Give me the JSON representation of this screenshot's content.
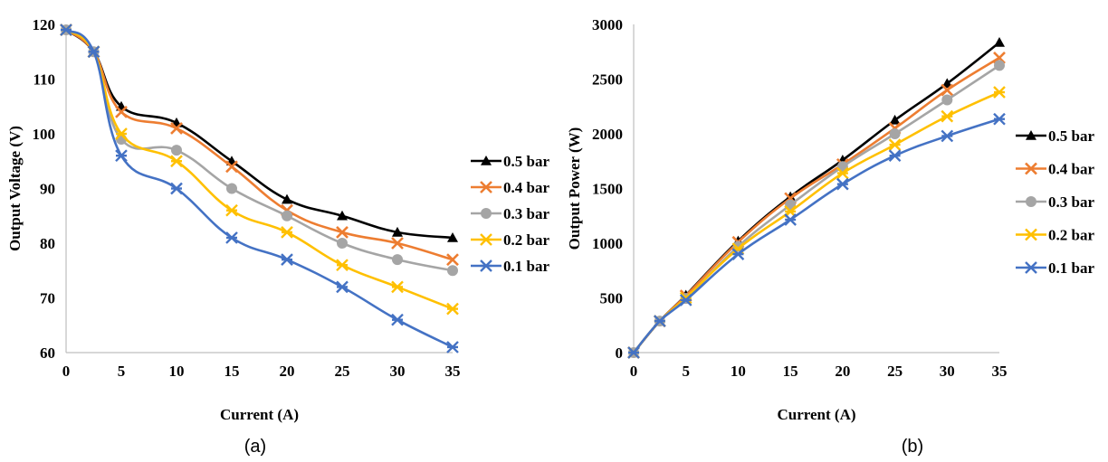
{
  "chart_data": [
    {
      "type": "line",
      "panel_label": "(a)",
      "xlabel": "Current (A)",
      "ylabel": "Output Voltage (V)",
      "xlim": [
        0,
        35
      ],
      "ylim": [
        60,
        120
      ],
      "xticks": [
        0,
        5,
        10,
        15,
        20,
        25,
        30,
        35
      ],
      "yticks": [
        60,
        70,
        80,
        90,
        100,
        110,
        120
      ],
      "grid": false,
      "legend_position": "right",
      "x": [
        0,
        2.5,
        5,
        10,
        15,
        20,
        25,
        30,
        35
      ],
      "series": [
        {
          "name": "0.5 bar",
          "color": "#000000",
          "marker": "triangle",
          "values": [
            119,
            115,
            105,
            102,
            95,
            88,
            85,
            82,
            81
          ]
        },
        {
          "name": "0.4 bar",
          "color": "#ed7d31",
          "marker": "x",
          "values": [
            119,
            115,
            104,
            101,
            94,
            86,
            82,
            80,
            77
          ]
        },
        {
          "name": "0.3 bar",
          "color": "#a5a5a5",
          "marker": "circle",
          "values": [
            119,
            115,
            99,
            97,
            90,
            85,
            80,
            77,
            75
          ]
        },
        {
          "name": "0.2 bar",
          "color": "#ffc000",
          "marker": "star",
          "values": [
            119,
            115,
            100,
            95,
            86,
            82,
            76,
            72,
            68
          ]
        },
        {
          "name": "0.1 bar",
          "color": "#4472c4",
          "marker": "star",
          "values": [
            119,
            115,
            96,
            90,
            81,
            77,
            72,
            66,
            61
          ]
        }
      ]
    },
    {
      "type": "line",
      "panel_label": "(b)",
      "xlabel": "Current (A)",
      "ylabel": "Output Power (W)",
      "xlim": [
        0,
        35
      ],
      "ylim": [
        0,
        3000
      ],
      "xticks": [
        0,
        5,
        10,
        15,
        20,
        25,
        30,
        35
      ],
      "yticks": [
        0,
        500,
        1000,
        1500,
        2000,
        2500,
        3000
      ],
      "grid": false,
      "legend_position": "right",
      "x": [
        0,
        2.5,
        5,
        10,
        15,
        20,
        25,
        30,
        35
      ],
      "series": [
        {
          "name": "0.5 bar",
          "color": "#000000",
          "marker": "triangle",
          "values": [
            0,
            288,
            525,
            1020,
            1425,
            1760,
            2125,
            2460,
            2835
          ]
        },
        {
          "name": "0.4 bar",
          "color": "#ed7d31",
          "marker": "x",
          "values": [
            0,
            288,
            520,
            1010,
            1410,
            1720,
            2050,
            2400,
            2695
          ]
        },
        {
          "name": "0.3 bar",
          "color": "#a5a5a5",
          "marker": "circle",
          "values": [
            0,
            288,
            495,
            970,
            1350,
            1700,
            2000,
            2310,
            2625
          ]
        },
        {
          "name": "0.2 bar",
          "color": "#ffc000",
          "marker": "star",
          "values": [
            0,
            288,
            500,
            950,
            1290,
            1640,
            1900,
            2160,
            2380
          ]
        },
        {
          "name": "0.1 bar",
          "color": "#4472c4",
          "marker": "star",
          "values": [
            0,
            288,
            480,
            900,
            1215,
            1540,
            1800,
            1980,
            2135
          ]
        }
      ]
    }
  ]
}
